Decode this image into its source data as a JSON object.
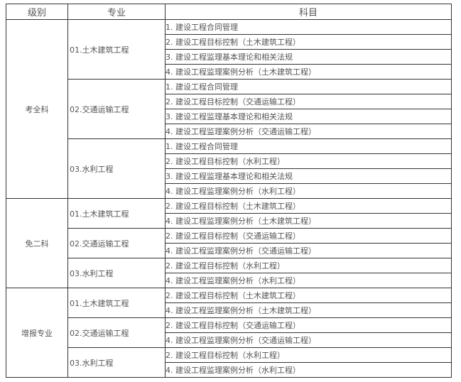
{
  "headers": [
    "级别",
    "专业",
    "科目"
  ],
  "levels": [
    {
      "name": "考全科",
      "majors": [
        {
          "name": "01.土木建筑工程",
          "subjects": [
            "1. 建设工程合同管理",
            "2. 建设工程目标控制（土木建筑工程）",
            "3. 建设工程监理基本理论和相关法规",
            "4. 建设工程监理案例分析（土木建筑工程）"
          ]
        },
        {
          "name": "02.交通运输工程",
          "subjects": [
            "1. 建设工程合同管理",
            "2. 建设工程目标控制（交通运输工程）",
            "3. 建设工程监理基本理论和相关法规",
            "4. 建设工程监理案例分析（交通运输工程）"
          ]
        },
        {
          "name": "03.水利工程",
          "subjects": [
            "1. 建设工程合同管理",
            "2. 建设工程目标控制（水利工程）",
            "3. 建设工程监理基本理论和相关法规",
            "4. 建设工程监理案例分析（水利工程）"
          ]
        }
      ]
    },
    {
      "name": "免二科",
      "majors": [
        {
          "name": "01.土木建筑工程",
          "subjects": [
            "2. 建设工程目标控制（土木建筑工程）",
            "4. 建设工程监理案例分析（土木建筑工程）"
          ]
        },
        {
          "name": "02.交通运输工程",
          "subjects": [
            "2. 建设工程目标控制（交通运输工程）",
            "4. 建设工程监理案例分析（交通运输工程）"
          ]
        },
        {
          "name": "03.水利工程",
          "subjects": [
            "2. 建设工程目标控制（水利工程）",
            "4. 建设工程监理案例分析（水利工程）"
          ]
        }
      ]
    },
    {
      "name": "增报专业",
      "majors": [
        {
          "name": "01.土木建筑工程",
          "subjects": [
            "2. 建设工程目标控制（土木建筑工程）",
            "4. 建设工程监理案例分析（土木建筑工程）"
          ]
        },
        {
          "name": "02.交通运输工程",
          "subjects": [
            "2. 建设工程目标控制（交通运输工程）",
            "4. 建设工程监理案例分析（交通运输工程）"
          ]
        },
        {
          "name": "03.水利工程",
          "subjects": [
            "2. 建设工程目标控制（水利工程）",
            "4. 建设工程监理案例分析（水利工程）"
          ]
        }
      ]
    }
  ]
}
